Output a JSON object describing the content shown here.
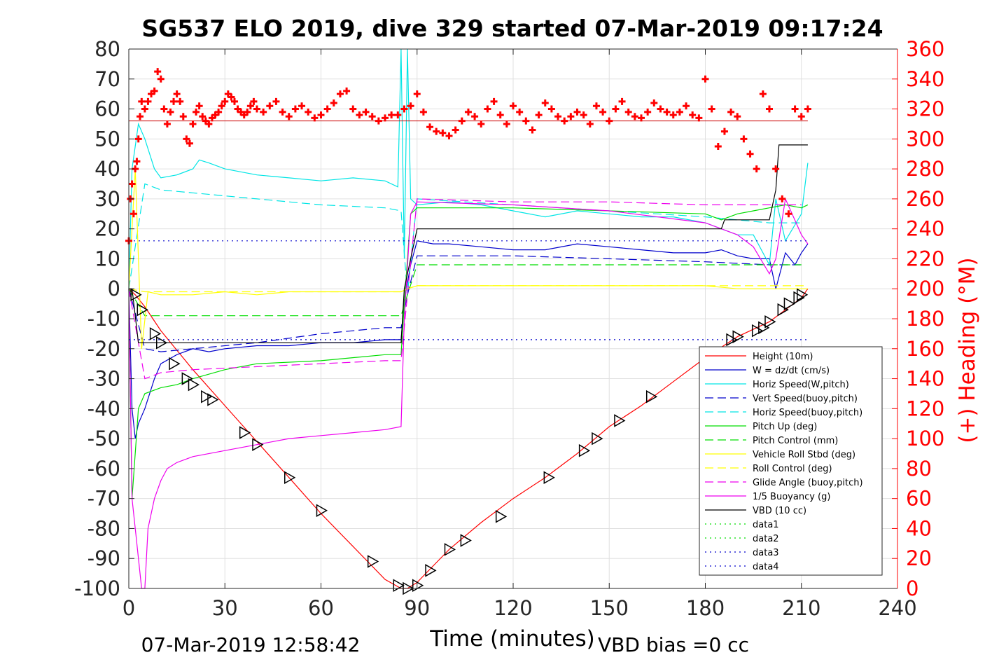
{
  "chart_data": {
    "type": "line",
    "title": "SG537 ELO 2019, dive 329 started 07-Mar-2019 09:17:24",
    "xlabel": "Time (minutes)",
    "ylabel_right": "(+) Heading (°M)",
    "footer_left": "07-Mar-2019 12:58:42",
    "footer_right": "VBD bias =0 cc",
    "xlim": [
      0,
      240
    ],
    "ylim_left": [
      -100,
      80
    ],
    "ylim_right": [
      0,
      360
    ],
    "x_ticks": [
      "0",
      "30",
      "60",
      "90",
      "120",
      "150",
      "180",
      "210",
      "240"
    ],
    "y_ticks_left": [
      "80",
      "70",
      "60",
      "50",
      "40",
      "30",
      "20",
      "10",
      "0",
      "-10",
      "-20",
      "-30",
      "-40",
      "-50",
      "-60",
      "-70",
      "-80",
      "-90",
      "-100"
    ],
    "y_ticks_right": [
      "360",
      "340",
      "320",
      "300",
      "280",
      "260",
      "240",
      "220",
      "200",
      "180",
      "160",
      "140",
      "120",
      "100",
      "80",
      "60",
      "40",
      "20",
      "0"
    ],
    "grid": true,
    "legend_position": "bottom-right",
    "colors": {
      "red": "#ff0000",
      "blue": "#0000cc",
      "cyan": "#00e5e5",
      "green": "#00dd00",
      "yellow": "#ffff00",
      "magenta": "#ee00ee",
      "black": "#000000"
    },
    "series": [
      {
        "name": "Height (10m)",
        "color": "#ff0000",
        "dash": "",
        "x": [
          0,
          2,
          5,
          10,
          20,
          30,
          40,
          50,
          60,
          70,
          80,
          85,
          87,
          90,
          100,
          110,
          120,
          130,
          140,
          150,
          160,
          170,
          180,
          190,
          200,
          205,
          210,
          212
        ],
        "y": [
          0,
          -2,
          -6,
          -14,
          -27,
          -39,
          -51,
          -63,
          -75,
          -86,
          -97,
          -100,
          -100,
          -98,
          -87,
          -78,
          -70,
          -63,
          -55,
          -46,
          -39,
          -31,
          -23,
          -16,
          -11,
          -7,
          -3,
          0
        ]
      },
      {
        "name": "W = dz/dt (cm/s)",
        "color": "#0000cc",
        "dash": "",
        "x": [
          0,
          1,
          2,
          3,
          5,
          8,
          10,
          15,
          20,
          25,
          30,
          40,
          50,
          60,
          70,
          80,
          85,
          86,
          88,
          90,
          95,
          100,
          110,
          120,
          130,
          140,
          150,
          160,
          170,
          180,
          185,
          190,
          195,
          200,
          202,
          205,
          208,
          210,
          212
        ],
        "y": [
          0,
          -40,
          -50,
          -45,
          -40,
          -30,
          -25,
          -22,
          -20,
          -21,
          -20,
          -19,
          -19,
          -18,
          -18,
          -17,
          -17,
          -4,
          8,
          16,
          15,
          15,
          14,
          13,
          13,
          15,
          14,
          13,
          12,
          12,
          13,
          11,
          10,
          10,
          0,
          12,
          8,
          12,
          15
        ]
      },
      {
        "name": "Horiz Speed(W,pitch)",
        "color": "#00e5e5",
        "dash": "",
        "x": [
          0,
          1,
          3,
          5,
          8,
          10,
          15,
          20,
          22,
          25,
          30,
          40,
          50,
          60,
          70,
          80,
          84,
          85,
          86,
          87,
          88,
          90,
          100,
          110,
          120,
          130,
          140,
          150,
          160,
          170,
          180,
          185,
          190,
          195,
          200,
          202,
          205,
          210,
          212
        ],
        "y": [
          0,
          40,
          55,
          50,
          40,
          37,
          38,
          40,
          43,
          42,
          40,
          38,
          37,
          36,
          37,
          36,
          34,
          80,
          10,
          80,
          30,
          28,
          29,
          28,
          26,
          24,
          26,
          25,
          24,
          24,
          22,
          20,
          18,
          18,
          8,
          30,
          16,
          25,
          42
        ]
      },
      {
        "name": "Vert Speed(buoy,pitch)",
        "color": "#0000cc",
        "dash": "12,6",
        "x": [
          0,
          5,
          10,
          20,
          40,
          60,
          80,
          85,
          87,
          90,
          120,
          150,
          180,
          200,
          210
        ],
        "y": [
          0,
          -20,
          -21,
          -20,
          -18,
          -15,
          -13,
          -13,
          -2,
          11,
          11,
          10,
          9,
          8,
          8
        ]
      },
      {
        "name": "Horiz Speed(buoy,pitch)",
        "color": "#00e5e5",
        "dash": "12,6",
        "x": [
          0,
          5,
          10,
          20,
          40,
          60,
          80,
          85,
          87,
          90,
          120,
          150,
          180,
          200,
          210
        ],
        "y": [
          0,
          35,
          33,
          32,
          30,
          28,
          27,
          26,
          -2,
          30,
          28,
          26,
          24,
          22,
          22
        ]
      },
      {
        "name": "Pitch Up (deg)",
        "color": "#00dd00",
        "dash": "",
        "x": [
          0,
          1,
          3,
          5,
          10,
          15,
          20,
          30,
          40,
          60,
          80,
          85,
          86,
          88,
          90,
          120,
          150,
          180,
          185,
          190,
          195,
          200,
          205,
          210,
          212
        ],
        "y": [
          0,
          -70,
          -40,
          -35,
          -33,
          -32,
          -30,
          -27,
          -25,
          -24,
          -22,
          -22,
          -5,
          25,
          27,
          27,
          26,
          25,
          23,
          25,
          26,
          27,
          28,
          27,
          28
        ]
      },
      {
        "name": "Pitch Control (mm)",
        "color": "#00dd00",
        "dash": "12,6",
        "x": [
          0,
          5,
          10,
          40,
          85,
          87,
          90,
          120,
          150,
          180,
          200,
          210
        ],
        "y": [
          0,
          -9,
          -9,
          -9,
          -9,
          -2,
          8,
          8,
          8,
          8,
          8,
          8
        ]
      },
      {
        "name": "Vehicle Roll Stbd (deg)",
        "color": "#ffff00",
        "dash": "",
        "x": [
          0,
          2,
          4,
          6,
          10,
          20,
          30,
          40,
          50,
          60,
          70,
          80,
          85,
          87,
          90,
          100,
          120,
          140,
          160,
          180,
          190,
          200,
          210,
          212
        ],
        "y": [
          0,
          40,
          -20,
          -1,
          -2,
          -2,
          -1,
          -2,
          -1,
          -1,
          -1,
          -1,
          -1,
          0,
          1,
          1,
          1,
          1,
          1,
          1,
          0,
          0,
          0,
          0
        ]
      },
      {
        "name": "Roll Control (deg)",
        "color": "#ffff00",
        "dash": "12,6",
        "x": [
          0,
          5,
          85,
          87,
          90,
          212
        ],
        "y": [
          0,
          -1,
          -1,
          0,
          1,
          1
        ]
      },
      {
        "name": "Glide Angle (buoy,pitch)",
        "color": "#ee00ee",
        "dash": "12,6",
        "x": [
          0,
          5,
          10,
          20,
          40,
          60,
          80,
          85,
          87,
          90,
          120,
          150,
          180,
          200,
          210
        ],
        "y": [
          0,
          -30,
          -28,
          -27,
          -26,
          -25,
          -24,
          -24,
          -2,
          30,
          29,
          29,
          28,
          28,
          28
        ]
      },
      {
        "name": "1/5 Buoyancy (g)",
        "color": "#ee00ee",
        "dash": "",
        "x": [
          0,
          1,
          2,
          4,
          5,
          6,
          8,
          10,
          12,
          15,
          20,
          30,
          40,
          50,
          60,
          70,
          80,
          85,
          86,
          88,
          90,
          120,
          150,
          180,
          190,
          195,
          200,
          202,
          205,
          210,
          212
        ],
        "y": [
          0,
          -70,
          -80,
          -100,
          -100,
          -80,
          -70,
          -64,
          -60,
          -58,
          -56,
          -54,
          -52,
          -50,
          -49,
          -48,
          -47,
          -46,
          -10,
          25,
          29,
          28,
          26,
          22,
          18,
          14,
          5,
          10,
          30,
          18,
          15
        ]
      },
      {
        "name": "VBD (10 cc)",
        "color": "#000000",
        "dash": "",
        "x": [
          0,
          1,
          3,
          85,
          86,
          88,
          90,
          185,
          186,
          190,
          200,
          202,
          203,
          212
        ],
        "y": [
          0,
          0,
          -18,
          -18,
          0,
          10,
          20,
          20,
          23,
          23,
          23,
          33,
          48,
          48
        ]
      },
      {
        "name": "data1",
        "color": "#00dd00",
        "dash": "2,5",
        "x": [],
        "y": []
      },
      {
        "name": "data2",
        "color": "#00dd00",
        "dash": "2,5",
        "x": [],
        "y": []
      },
      {
        "name": "data3",
        "color": "#0000cc",
        "dash": "2,5",
        "x": [
          0,
          212
        ],
        "y": [
          16,
          16
        ]
      },
      {
        "name": "data4",
        "color": "#0000cc",
        "dash": "2,5",
        "x": [
          0,
          212
        ],
        "y": [
          -17,
          -17
        ]
      }
    ],
    "heading_marker_series": {
      "color": "#ff0000",
      "axis": "right",
      "x": [
        0,
        0.5,
        1,
        1.5,
        2,
        2.5,
        3,
        3.5,
        4,
        5,
        6,
        7,
        8,
        9,
        10,
        11,
        12,
        13,
        14,
        15,
        16,
        17,
        18,
        19,
        20,
        21,
        22,
        23,
        24,
        25,
        26,
        27,
        28,
        29,
        30,
        31,
        32,
        33,
        34,
        35,
        36,
        37,
        38,
        39,
        40,
        42,
        44,
        46,
        48,
        50,
        52,
        54,
        56,
        58,
        60,
        62,
        64,
        66,
        68,
        70,
        72,
        74,
        76,
        78,
        80,
        82,
        84,
        86,
        88,
        90,
        92,
        94,
        96,
        98,
        100,
        102,
        104,
        106,
        108,
        110,
        112,
        114,
        116,
        118,
        120,
        122,
        124,
        126,
        128,
        130,
        132,
        134,
        136,
        138,
        140,
        142,
        144,
        146,
        148,
        150,
        152,
        154,
        156,
        158,
        160,
        162,
        164,
        166,
        168,
        170,
        172,
        174,
        176,
        178,
        180,
        182,
        184,
        186,
        188,
        190,
        192,
        194,
        196,
        198,
        200,
        202,
        204,
        206,
        208,
        210,
        212
      ],
      "y": [
        232,
        260,
        270,
        250,
        280,
        285,
        300,
        315,
        325,
        320,
        325,
        330,
        332,
        345,
        340,
        320,
        310,
        318,
        325,
        330,
        325,
        315,
        300,
        297,
        310,
        318,
        322,
        315,
        312,
        310,
        314,
        316,
        318,
        322,
        325,
        330,
        328,
        325,
        320,
        318,
        316,
        318,
        322,
        325,
        320,
        318,
        322,
        325,
        318,
        315,
        320,
        322,
        318,
        314,
        316,
        320,
        324,
        330,
        332,
        320,
        316,
        318,
        315,
        312,
        314,
        316,
        316,
        320,
        322,
        330,
        318,
        308,
        305,
        304,
        302,
        306,
        312,
        318,
        315,
        310,
        320,
        325,
        316,
        310,
        322,
        318,
        312,
        306,
        316,
        324,
        320,
        315,
        312,
        315,
        318,
        316,
        310,
        322,
        318,
        312,
        320,
        325,
        318,
        315,
        314,
        318,
        324,
        320,
        318,
        316,
        318,
        322,
        316,
        314,
        340,
        320,
        295,
        305,
        318,
        315,
        300,
        290,
        280,
        330,
        320,
        280,
        260,
        250,
        320,
        315,
        320
      ]
    },
    "triangle_markers": {
      "x": [
        2,
        4,
        8,
        10,
        14,
        18,
        20,
        24,
        26,
        36,
        40,
        50,
        60,
        76,
        84,
        87,
        90,
        94,
        100,
        105,
        116,
        131,
        142,
        146,
        153,
        163,
        180,
        188,
        190,
        196,
        198,
        200,
        204,
        206,
        209,
        210
      ],
      "y": [
        -2,
        -7,
        -15,
        -18,
        -25,
        -30,
        -32,
        -36,
        -37,
        -48,
        -52,
        -63,
        -74,
        -91,
        -99,
        -100,
        -99,
        -94,
        -87,
        -84,
        -76,
        -63,
        -54,
        -50,
        -44,
        -36,
        -24,
        -17,
        -16,
        -14,
        -13,
        -11,
        -7,
        -5,
        -3,
        -2
      ]
    },
    "mean_heading_line": 312
  }
}
